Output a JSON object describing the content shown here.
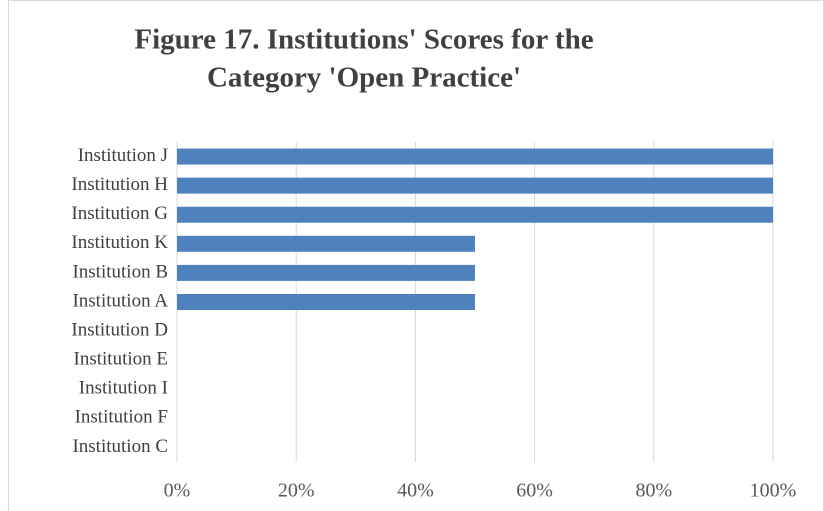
{
  "chart_data": {
    "type": "barh",
    "title": [
      "Figure 17. Institutions' Scores for the",
      "Category 'Open Practice'"
    ],
    "categories": [
      "Institution J",
      "Institution H",
      "Institution G",
      "Institution K",
      "Institution B",
      "Institution A",
      "Institution D",
      "Institution E",
      "Institution I",
      "Institution F",
      "Institution C"
    ],
    "values": [
      100,
      100,
      100,
      50,
      50,
      50,
      0,
      0,
      0,
      0,
      0
    ],
    "color": "#4f81bd",
    "xlim": [
      0,
      100
    ],
    "xticks": [
      {
        "value": 0,
        "label": "0%"
      },
      {
        "value": 20,
        "label": "20%"
      },
      {
        "value": 40,
        "label": "40%"
      },
      {
        "value": 60,
        "label": "60%"
      },
      {
        "value": 80,
        "label": "80%"
      },
      {
        "value": 100,
        "label": "100%"
      }
    ],
    "grid": true
  }
}
